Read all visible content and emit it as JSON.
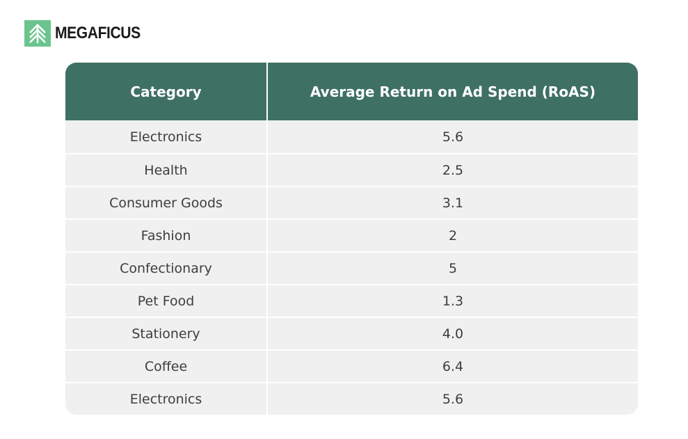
{
  "brand": {
    "name": "MEGAFICUS",
    "logo_color": "#6bc48d"
  },
  "colors": {
    "header_bg": "#3e7063",
    "row_bg": "#f0f0f0"
  },
  "chart_data": {
    "type": "table",
    "columns": [
      "Category",
      "Average Return on Ad Spend (RoAS)"
    ],
    "rows": [
      [
        "Electronics",
        "5.6"
      ],
      [
        "Health",
        "2.5"
      ],
      [
        "Consumer Goods",
        "3.1"
      ],
      [
        "Fashion",
        "2"
      ],
      [
        "Confectionary",
        "5"
      ],
      [
        "Pet Food",
        "1.3"
      ],
      [
        "Stationery",
        "4.0"
      ],
      [
        "Coffee",
        "6.4"
      ],
      [
        "Electronics",
        "5.6"
      ]
    ]
  }
}
